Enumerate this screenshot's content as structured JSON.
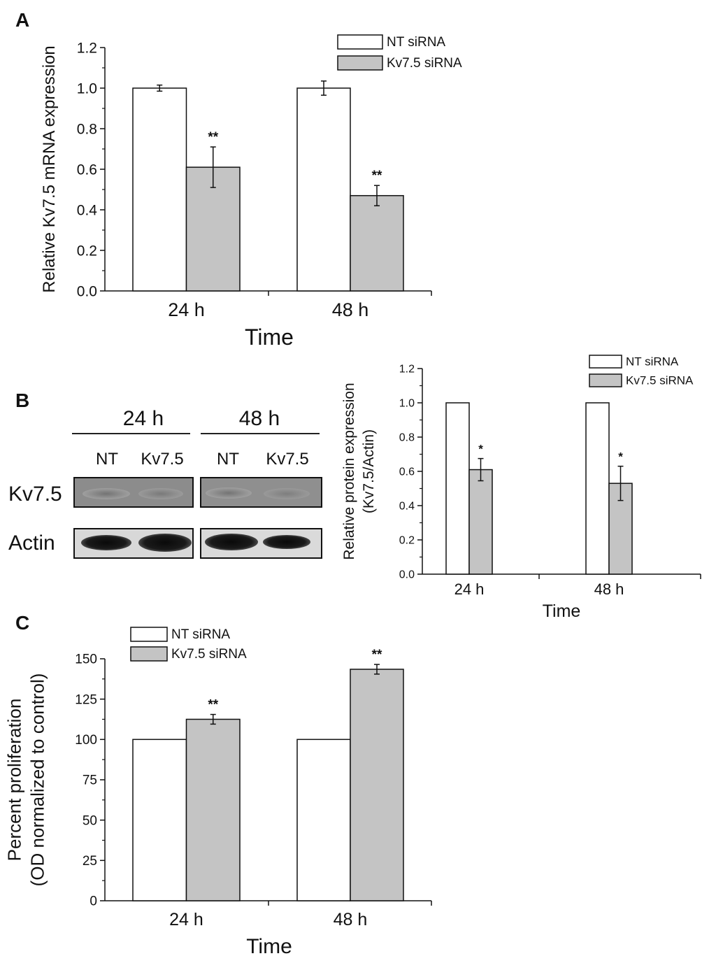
{
  "panel_labels": {
    "a": "A",
    "b": "B",
    "c": "C"
  },
  "colors": {
    "nt": "#ffffff",
    "kv": "#c4c4c4",
    "stroke": "#111111"
  },
  "chart_data": [
    {
      "panel": "A",
      "type": "bar",
      "categories": [
        "24 h",
        "48 h"
      ],
      "series": [
        {
          "name": "NT siRNA",
          "values": [
            1.0,
            1.0
          ],
          "errors": [
            0.015,
            0.035
          ],
          "marks": [
            "",
            ""
          ]
        },
        {
          "name": "Kv7.5 siRNA",
          "values": [
            0.61,
            0.47
          ],
          "errors": [
            0.1,
            0.05
          ],
          "marks": [
            "**",
            "**"
          ]
        }
      ],
      "xlabel": "Time",
      "ylabel": "Relative Kv7.5 mRNA expression",
      "ylim": [
        0,
        1.2
      ],
      "yticks": [
        "0.0",
        "0.2",
        "0.4",
        "0.6",
        "0.8",
        "1.0",
        "1.2"
      ],
      "legend": "top-right"
    },
    {
      "panel": "B",
      "type": "bar",
      "categories": [
        "24 h",
        "48 h"
      ],
      "series": [
        {
          "name": "NT siRNA",
          "values": [
            1.0,
            1.0
          ],
          "errors": [
            0,
            0
          ],
          "marks": [
            "",
            ""
          ]
        },
        {
          "name": "Kv7.5 siRNA",
          "values": [
            0.61,
            0.53
          ],
          "errors": [
            0.065,
            0.1
          ],
          "marks": [
            "*",
            "*"
          ]
        }
      ],
      "xlabel": "Time",
      "ylabel": [
        "Relative protein expression",
        "(Kv7.5/Actin)"
      ],
      "ylim": [
        0,
        1.2
      ],
      "yticks": [
        "0.0",
        "0.2",
        "0.4",
        "0.6",
        "0.8",
        "1.0",
        "1.2"
      ],
      "legend": "top-right"
    },
    {
      "panel": "C",
      "type": "bar",
      "categories": [
        "24 h",
        "48 h"
      ],
      "series": [
        {
          "name": "NT siRNA",
          "values": [
            100,
            100
          ],
          "errors": [
            0,
            0
          ],
          "marks": [
            "",
            ""
          ]
        },
        {
          "name": "Kv7.5 siRNA",
          "values": [
            112.5,
            143.5
          ],
          "errors": [
            3,
            3
          ],
          "marks": [
            "**",
            "**"
          ]
        }
      ],
      "xlabel": "Time",
      "ylabel": [
        "Percent proliferation",
        "(OD normalized to control)"
      ],
      "ylim": [
        0,
        150
      ],
      "yticks": [
        "0",
        "25",
        "50",
        "75",
        "100",
        "125",
        "150"
      ],
      "legend": "top-left"
    }
  ],
  "blot": {
    "groups": [
      "24 h",
      "48 h"
    ],
    "lanes": [
      "NT",
      "Kv7.5",
      "NT",
      "Kv7.5"
    ],
    "rows": [
      "Kv7.5",
      "Actin"
    ]
  }
}
